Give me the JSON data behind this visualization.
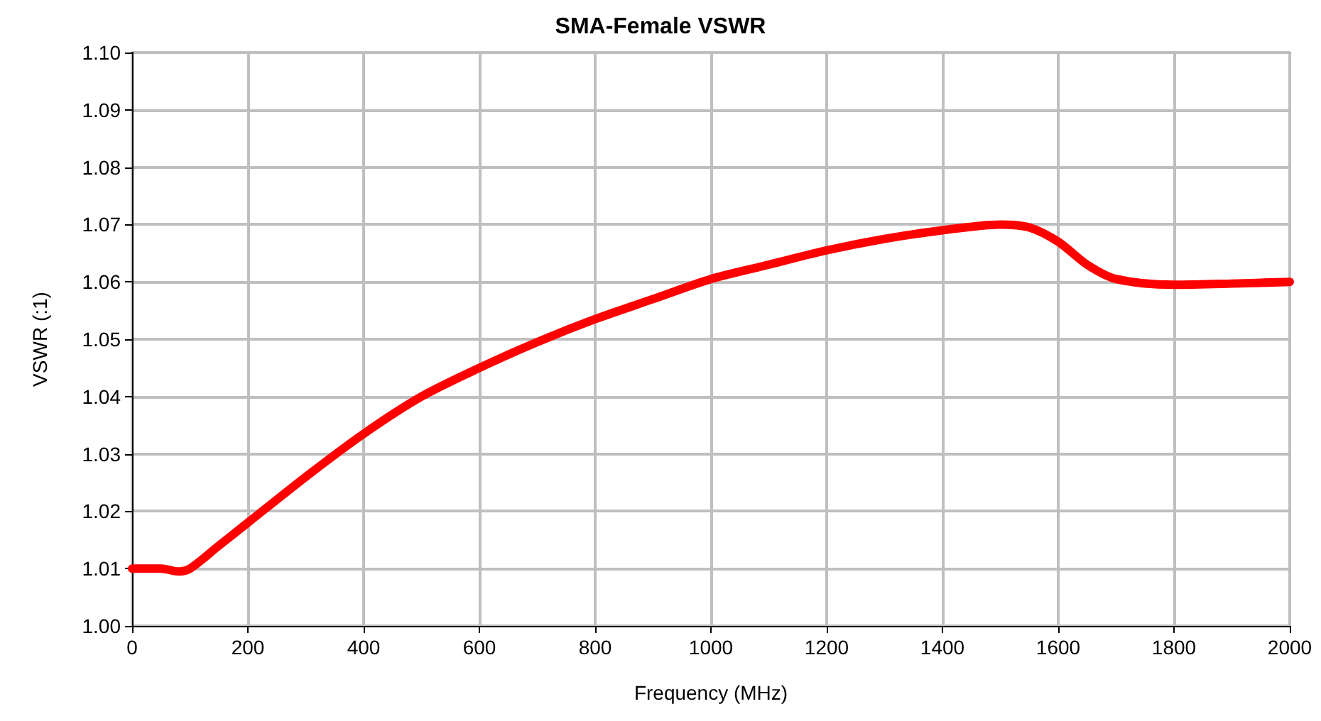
{
  "chart_data": {
    "type": "line",
    "title": "SMA-Female VSWR",
    "xlabel": "Frequency (MHz)",
    "ylabel": "VSWR (:1)",
    "x": [
      0,
      50,
      80,
      100,
      150,
      200,
      300,
      400,
      500,
      600,
      700,
      800,
      900,
      1000,
      1100,
      1200,
      1300,
      1400,
      1500,
      1550,
      1600,
      1650,
      1700,
      1800,
      1900,
      2000
    ],
    "series": [
      {
        "color": "#ff0000",
        "values": [
          1.01,
          1.01,
          1.0095,
          1.01,
          1.014,
          1.018,
          1.026,
          1.0335,
          1.04,
          1.045,
          1.0495,
          1.0535,
          1.057,
          1.0605,
          1.063,
          1.0655,
          1.0675,
          1.069,
          1.07,
          1.0695,
          1.067,
          1.063,
          1.0605,
          1.0595,
          1.0597,
          1.06
        ]
      }
    ],
    "xlim": [
      0,
      2000
    ],
    "xticks": [
      0,
      200,
      400,
      600,
      800,
      1000,
      1200,
      1400,
      1600,
      1800,
      2000
    ],
    "ylim": [
      1.0,
      1.1
    ],
    "yticks": [
      {
        "value": 1.0,
        "label": "1.00"
      },
      {
        "value": 1.01,
        "label": "1.01"
      },
      {
        "value": 1.02,
        "label": "1.02"
      },
      {
        "value": 1.03,
        "label": "1.03"
      },
      {
        "value": 1.04,
        "label": "1.04"
      },
      {
        "value": 1.05,
        "label": "1.05"
      },
      {
        "value": 1.06,
        "label": "1.06"
      },
      {
        "value": 1.07,
        "label": "1.07"
      },
      {
        "value": 1.08,
        "label": "1.08"
      },
      {
        "value": 1.09,
        "label": "1.09"
      },
      {
        "value": 1.1,
        "label": "1.10"
      }
    ],
    "grid": true,
    "marker": "none",
    "line_style": "solid"
  }
}
